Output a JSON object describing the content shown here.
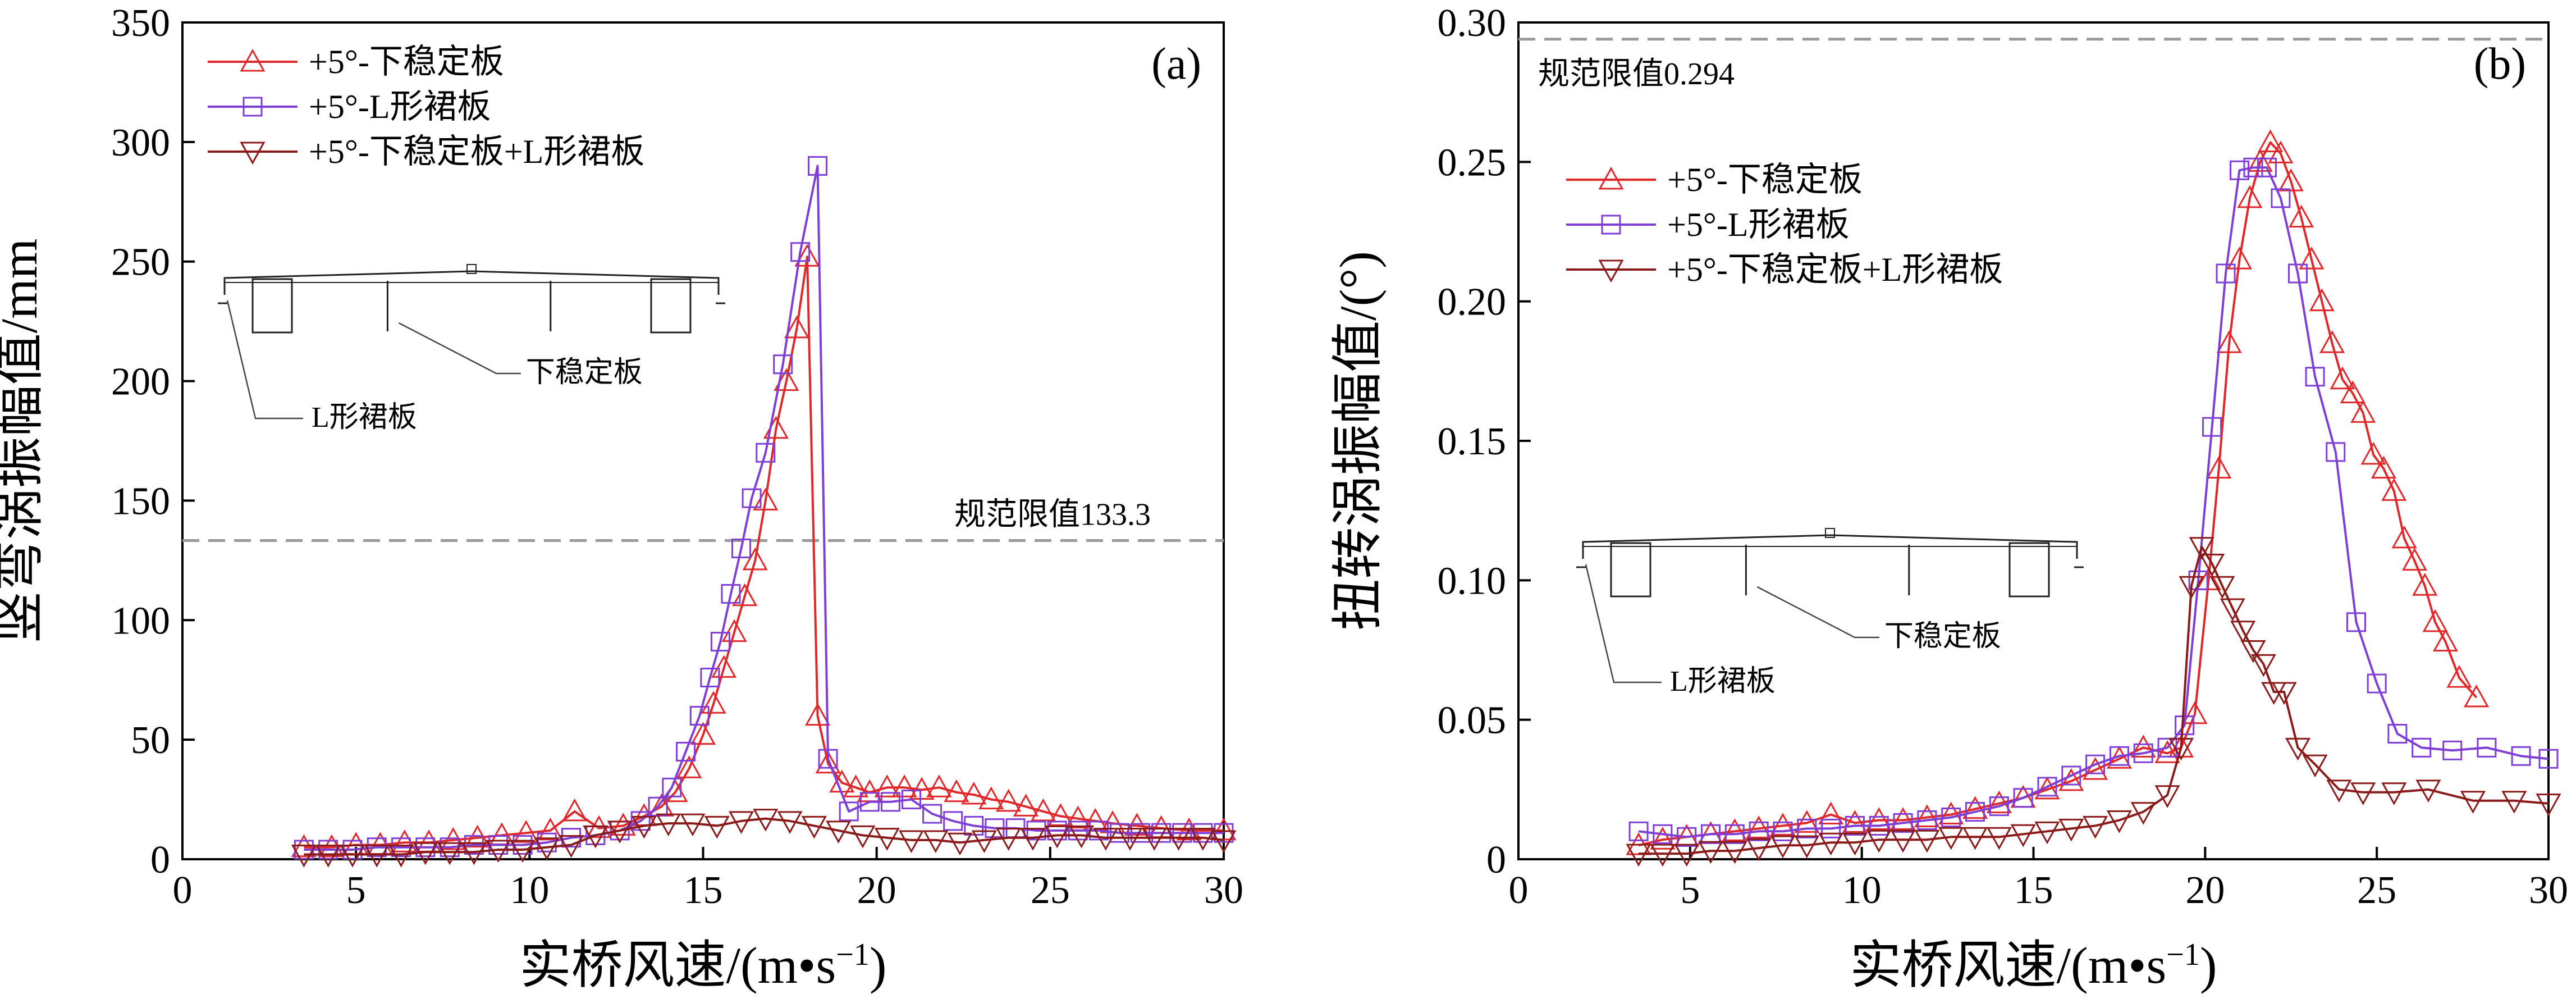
{
  "chart_data": [
    {
      "type": "line",
      "panel_label": "(a)",
      "xlabel": "实桥风速/(m•s",
      "xlabel_sup": "−1",
      "xlabel_end": ")",
      "ylabel": "竖弯涡振幅值/mm",
      "xlim": [
        0,
        30
      ],
      "ylim": [
        0,
        350
      ],
      "xticks": [
        0,
        5,
        10,
        15,
        20,
        25,
        30
      ],
      "yticks": [
        0,
        50,
        100,
        150,
        200,
        250,
        300,
        350
      ],
      "xtick_labels": [
        "0",
        "5",
        "10",
        "15",
        "20",
        "25",
        "30"
      ],
      "ytick_labels": [
        "0",
        "50",
        "100",
        "150",
        "200",
        "250",
        "300",
        "350"
      ],
      "limit": {
        "value": 133.3,
        "label": "规范限值133.3"
      },
      "legend_position": "top-left",
      "inset": {
        "label_a": "下稳定板",
        "label_b": "L形裙板"
      },
      "series": [
        {
          "name": "+5°-下稳定板",
          "color": "#e0282a",
          "marker": "triangle-up",
          "x": [
            3.5,
            4.3,
            5,
            5.7,
            6.4,
            7.1,
            7.8,
            8.5,
            9.2,
            9.9,
            10.6,
            11.3,
            12,
            12.7,
            13.3,
            13.8,
            14.2,
            14.6,
            15,
            15.3,
            15.6,
            15.9,
            16.2,
            16.5,
            16.8,
            17.1,
            17.4,
            17.7,
            18.0,
            18.3,
            18.6,
            19,
            19.4,
            19.8,
            20.3,
            20.8,
            21.3,
            21.8,
            22.3,
            22.8,
            23.3,
            23.8,
            24.3,
            24.8,
            25.3,
            25.8,
            26.3,
            26.8,
            27.5,
            28.2,
            29,
            30
          ],
          "y": [
            5,
            5,
            6,
            6,
            7,
            7,
            8,
            9,
            10,
            11,
            12,
            20,
            13,
            14,
            18,
            22,
            28,
            38,
            52,
            65,
            80,
            95,
            110,
            125,
            150,
            180,
            200,
            222,
            252,
            60,
            40,
            32,
            30,
            28,
            30,
            30,
            29,
            30,
            28,
            27,
            25,
            24,
            22,
            20,
            18,
            17,
            16,
            15,
            14,
            13,
            12,
            12
          ]
        },
        {
          "name": "+5°-L形裙板",
          "color": "#7f3fd6",
          "marker": "square",
          "x": [
            3.5,
            4.2,
            4.9,
            5.6,
            6.3,
            7,
            7.7,
            8.4,
            9.1,
            9.8,
            10.5,
            11.2,
            11.9,
            12.6,
            13.2,
            13.7,
            14.1,
            14.5,
            14.9,
            15.2,
            15.5,
            15.8,
            16.1,
            16.4,
            16.8,
            17.3,
            17.8,
            18.3,
            18.6,
            19.2,
            19.8,
            20.4,
            21.0,
            21.6,
            22.2,
            22.8,
            23.4,
            24.0,
            24.6,
            25.2,
            25.8,
            26.4,
            27.0,
            27.6,
            28.2,
            28.8,
            29.4,
            30
          ],
          "y": [
            4,
            4,
            4,
            5,
            5,
            5,
            5,
            6,
            6,
            6,
            7,
            9,
            10,
            12,
            16,
            22,
            30,
            45,
            60,
            76,
            91,
            111,
            130,
            151,
            170,
            207,
            254,
            290,
            42,
            20,
            24,
            24,
            25,
            19,
            16,
            14,
            13,
            13,
            12,
            12,
            12,
            12,
            11,
            11,
            11,
            11,
            11,
            11
          ]
        },
        {
          "name": "+5°-下稳定板+L形裙板",
          "color": "#8b1a1a",
          "marker": "triangle-down",
          "x": [
            3.5,
            4.2,
            4.9,
            5.6,
            6.3,
            7,
            7.7,
            8.4,
            9.1,
            9.8,
            10.5,
            11.2,
            11.9,
            12.6,
            13.3,
            14.0,
            14.7,
            15.4,
            16.1,
            16.8,
            17.5,
            18.2,
            18.9,
            19.6,
            20.3,
            21.0,
            21.7,
            22.4,
            23.1,
            23.8,
            24.5,
            25.2,
            25.9,
            26.6,
            27.3,
            28.0,
            28.7,
            29.4,
            30
          ],
          "y": [
            2,
            2,
            2,
            2,
            2,
            3,
            3,
            3,
            4,
            4,
            5,
            6,
            10,
            12,
            14,
            15,
            15,
            14,
            16,
            17,
            16,
            14,
            12,
            10,
            9,
            8,
            8,
            7,
            8,
            9,
            9,
            10,
            10,
            9,
            9,
            9,
            9,
            9,
            8
          ]
        }
      ]
    },
    {
      "type": "line",
      "panel_label": "(b)",
      "xlabel": "实桥风速/(m•s",
      "xlabel_sup": "−1",
      "xlabel_end": ")",
      "ylabel": "扭转涡振幅值/(°)",
      "xlim": [
        0,
        30
      ],
      "ylim": [
        0,
        0.3
      ],
      "xticks": [
        0,
        5,
        10,
        15,
        20,
        25,
        30
      ],
      "yticks": [
        0,
        0.05,
        0.1,
        0.15,
        0.2,
        0.25,
        0.3
      ],
      "xtick_labels": [
        "0",
        "5",
        "10",
        "15",
        "20",
        "25",
        "30"
      ],
      "ytick_labels": [
        "0",
        "0.05",
        "0.10",
        "0.15",
        "0.20",
        "0.25",
        "0.30"
      ],
      "limit": {
        "value": 0.294,
        "label": "规范限值0.294"
      },
      "legend_position": "upper-left",
      "inset": {
        "label_a": "下稳定板",
        "label_b": "L形裙板"
      },
      "series": [
        {
          "name": "+5°-下稳定板",
          "color": "#e0282a",
          "marker": "triangle-up",
          "x": [
            3.5,
            4.2,
            4.9,
            5.6,
            6.3,
            7,
            7.7,
            8.4,
            9.1,
            9.8,
            10.5,
            11.2,
            11.9,
            12.6,
            13.3,
            14,
            14.7,
            15.4,
            16.1,
            16.8,
            17.5,
            18.2,
            18.9,
            19.3,
            19.7,
            20.1,
            20.4,
            20.7,
            21.0,
            21.3,
            21.6,
            21.9,
            22.2,
            22.5,
            22.8,
            23.1,
            23.4,
            23.7,
            24.0,
            24.3,
            24.6,
            24.9,
            25.2,
            25.5,
            25.8,
            26.1,
            26.4,
            26.7,
            27.0,
            27.4,
            27.9
          ],
          "y": [
            0.005,
            0.007,
            0.008,
            0.009,
            0.01,
            0.011,
            0.012,
            0.013,
            0.016,
            0.013,
            0.014,
            0.014,
            0.015,
            0.016,
            0.018,
            0.02,
            0.022,
            0.025,
            0.028,
            0.032,
            0.036,
            0.04,
            0.038,
            0.04,
            0.052,
            0.1,
            0.14,
            0.185,
            0.215,
            0.237,
            0.25,
            0.257,
            0.253,
            0.243,
            0.23,
            0.215,
            0.2,
            0.185,
            0.172,
            0.167,
            0.16,
            0.145,
            0.14,
            0.132,
            0.115,
            0.107,
            0.098,
            0.085,
            0.078,
            0.065,
            0.058
          ]
        },
        {
          "name": "+5°-L形裙板",
          "color": "#7f3fd6",
          "marker": "square",
          "x": [
            3.5,
            4.2,
            4.9,
            5.6,
            6.3,
            7,
            7.7,
            8.4,
            9.1,
            9.8,
            10.5,
            11.2,
            11.9,
            12.6,
            13.3,
            14.0,
            14.7,
            15.4,
            16.1,
            16.8,
            17.5,
            18.2,
            18.9,
            19.4,
            19.8,
            20.2,
            20.6,
            21.0,
            21.4,
            21.8,
            22.2,
            22.7,
            23.2,
            23.8,
            24.4,
            25.0,
            25.6,
            26.3,
            27.2,
            28.2,
            29.2,
            30
          ],
          "y": [
            0.01,
            0.009,
            0.008,
            0.009,
            0.009,
            0.01,
            0.01,
            0.011,
            0.011,
            0.012,
            0.012,
            0.013,
            0.014,
            0.015,
            0.017,
            0.019,
            0.022,
            0.026,
            0.03,
            0.034,
            0.037,
            0.038,
            0.04,
            0.048,
            0.1,
            0.155,
            0.21,
            0.247,
            0.248,
            0.248,
            0.237,
            0.21,
            0.173,
            0.146,
            0.085,
            0.063,
            0.045,
            0.04,
            0.039,
            0.04,
            0.037,
            0.036
          ]
        },
        {
          "name": "+5°-下稳定板+L形裙板",
          "color": "#8b1a1a",
          "marker": "triangle-down",
          "x": [
            3.5,
            4.2,
            4.9,
            5.6,
            6.3,
            7,
            7.7,
            8.4,
            9.1,
            9.8,
            10.5,
            11.2,
            11.9,
            12.6,
            13.3,
            14.0,
            14.7,
            15.4,
            16.1,
            16.8,
            17.5,
            18.2,
            18.9,
            19.3,
            19.6,
            19.9,
            20.2,
            20.5,
            20.8,
            21.1,
            21.4,
            21.7,
            22.0,
            22.3,
            22.7,
            23.2,
            23.9,
            24.6,
            25.5,
            26.5,
            27.8,
            29,
            30
          ],
          "y": [
            0.002,
            0.002,
            0.002,
            0.003,
            0.003,
            0.004,
            0.005,
            0.005,
            0.006,
            0.006,
            0.007,
            0.007,
            0.007,
            0.008,
            0.008,
            0.008,
            0.009,
            0.01,
            0.011,
            0.012,
            0.014,
            0.017,
            0.023,
            0.04,
            0.098,
            0.112,
            0.106,
            0.098,
            0.09,
            0.082,
            0.075,
            0.07,
            0.06,
            0.06,
            0.04,
            0.034,
            0.025,
            0.024,
            0.024,
            0.025,
            0.021,
            0.021,
            0.02
          ]
        }
      ]
    }
  ]
}
